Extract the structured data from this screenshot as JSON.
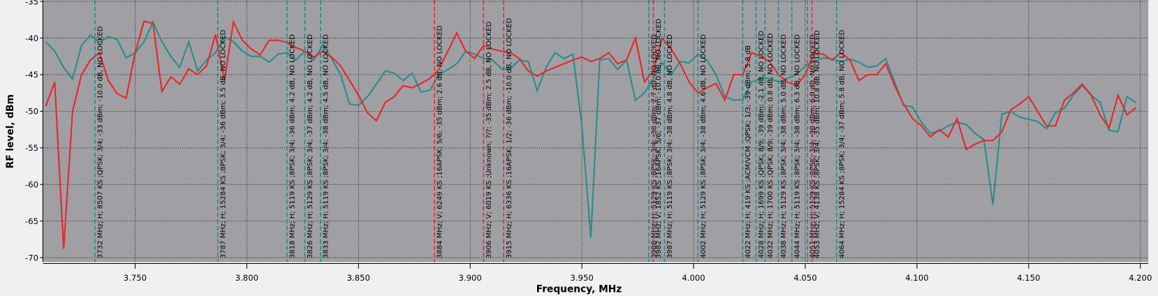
{
  "chart_data": {
    "type": "line",
    "x_label": "Frequency, MHz",
    "y_label": "RF level, dBm",
    "xlim": [
      3.7087,
      4.2036
    ],
    "ylim": [
      -70.6,
      -34.8
    ],
    "xticks": [
      {
        "value": 3.75,
        "label": "3.750"
      },
      {
        "value": 3.8,
        "label": "3.800"
      },
      {
        "value": 3.85,
        "label": "3.850"
      },
      {
        "value": 3.9,
        "label": "3.900"
      },
      {
        "value": 3.95,
        "label": "3.950"
      },
      {
        "value": 4.0,
        "label": "4.000"
      },
      {
        "value": 4.05,
        "label": "4.050"
      },
      {
        "value": 4.1,
        "label": "4.100"
      },
      {
        "value": 4.15,
        "label": "4.150"
      },
      {
        "value": 4.2,
        "label": "4.200"
      }
    ],
    "yticks": [
      -35,
      -40,
      -45,
      -50,
      -55,
      -60,
      -65,
      -70
    ],
    "grid": true,
    "x": [
      3.71,
      3.714,
      3.718,
      3.722,
      3.726,
      3.73,
      3.734,
      3.738,
      3.742,
      3.746,
      3.75,
      3.754,
      3.758,
      3.762,
      3.766,
      3.77,
      3.774,
      3.778,
      3.782,
      3.786,
      3.79,
      3.794,
      3.798,
      3.802,
      3.806,
      3.81,
      3.814,
      3.818,
      3.822,
      3.826,
      3.83,
      3.834,
      3.838,
      3.842,
      3.846,
      3.85,
      3.854,
      3.858,
      3.862,
      3.866,
      3.87,
      3.874,
      3.878,
      3.882,
      3.886,
      3.89,
      3.894,
      3.898,
      3.902,
      3.906,
      3.91,
      3.914,
      3.918,
      3.922,
      3.926,
      3.93,
      3.934,
      3.938,
      3.942,
      3.946,
      3.95,
      3.954,
      3.958,
      3.962,
      3.966,
      3.97,
      3.974,
      3.978,
      3.982,
      3.986,
      3.99,
      3.994,
      3.998,
      4.002,
      4.006,
      4.01,
      4.014,
      4.018,
      4.022,
      4.026,
      4.03,
      4.034,
      4.038,
      4.042,
      4.046,
      4.05,
      4.054,
      4.058,
      4.062,
      4.066,
      4.07,
      4.074,
      4.078,
      4.082,
      4.086,
      4.09,
      4.094,
      4.098,
      4.102,
      4.106,
      4.11,
      4.114,
      4.118,
      4.122,
      4.126,
      4.13,
      4.134,
      4.138,
      4.142,
      4.146,
      4.15,
      4.154,
      4.158,
      4.162,
      4.166,
      4.17,
      4.174,
      4.178,
      4.182,
      4.186,
      4.19,
      4.194,
      4.198
    ],
    "series": [
      {
        "color": "#2a8c8c",
        "values": [
          -40.5,
          -41.8,
          -44,
          -45.6,
          -41,
          -39.6,
          -40.6,
          -39.8,
          -40.2,
          -42.7,
          -42,
          -40.5,
          -37.8,
          -40.5,
          -42.5,
          -44,
          -40.5,
          -44.5,
          -43,
          -42,
          -39.8,
          -40.5,
          -41.8,
          -42.5,
          -42.5,
          -43.3,
          -42.2,
          -42,
          -43,
          -41.8,
          -43,
          -41,
          -42.8,
          -45,
          -49,
          -49.2,
          -48,
          -46.3,
          -44.5,
          -44.8,
          -45.8,
          -44.8,
          -47.4,
          -47.1,
          -45,
          -44.3,
          -43.5,
          -41.8,
          -42.2,
          -42.8,
          -43,
          -44.2,
          -44.2,
          -43,
          -43.2,
          -47.2,
          -44,
          -42,
          -42.8,
          -42.2,
          -52,
          -67.3,
          -43,
          -42.8,
          -44.3,
          -43,
          -48.5,
          -47.5,
          -45.5,
          -43.4,
          -45,
          -43.2,
          -43.4,
          -42.2,
          -43,
          -45,
          -48,
          -48.5,
          -48.4,
          -46,
          -45.5,
          -45.5,
          -46,
          -45.5,
          -45,
          -43.8,
          -43.2,
          -42.7,
          -42.9,
          -43.2,
          -42.9,
          -43.3,
          -44,
          -43.8,
          -42.8,
          -46,
          -49.2,
          -49.4,
          -51.5,
          -53,
          -52.7,
          -52,
          -51.5,
          -51.8,
          -53,
          -53.9,
          -62.8,
          -50.4,
          -50,
          -50.8,
          -51.1,
          -51.4,
          -52.4,
          -50.2,
          -49.6,
          -47.8,
          -46.5,
          -47.8,
          -48.8,
          -52.6,
          -52.8,
          -48,
          -48.8
        ]
      },
      {
        "color": "#e8262a",
        "values": [
          -49.3,
          -46,
          -68.8,
          -50,
          -45,
          -43,
          -42,
          -45.8,
          -47.6,
          -48.2,
          -42,
          -37.7,
          -38,
          -47.3,
          -45.3,
          -46.3,
          -44.2,
          -45,
          -43.8,
          -39.5,
          -45.8,
          -37.8,
          -40.3,
          -41.5,
          -42.3,
          -40.3,
          -40.3,
          -40.6,
          -41.3,
          -41.8,
          -42.6,
          -41.8,
          -42.6,
          -43.8,
          -45.8,
          -47.8,
          -50.2,
          -51.3,
          -48.8,
          -48,
          -46.5,
          -46.8,
          -46.2,
          -45.5,
          -44.3,
          -41.8,
          -39.3,
          -41.8,
          -42.8,
          -41,
          -41.5,
          -41.8,
          -42,
          -42.8,
          -44.5,
          -45.2,
          -44.5,
          -44,
          -43.5,
          -43,
          -42.6,
          -43.2,
          -42.8,
          -42,
          -43.5,
          -43,
          -40,
          -46,
          -44.5,
          -40,
          -41.5,
          -43.5,
          -46,
          -47.5,
          -46.8,
          -46.2,
          -48.5,
          -45,
          -45,
          -42,
          -42.5,
          -43.2,
          -45,
          -46,
          -46.5,
          -45,
          -42,
          -42.2,
          -43,
          -42,
          -43,
          -45.8,
          -45,
          -45,
          -43.5,
          -46.5,
          -49,
          -51,
          -52,
          -53.5,
          -52.5,
          -53.5,
          -51,
          -55.2,
          -54.5,
          -54,
          -54,
          -52.8,
          -49.8,
          -49,
          -48,
          -50,
          -52,
          -52,
          -48.5,
          -47.5,
          -46.3,
          -47.8,
          -50.5,
          -52.3,
          -47.8,
          -50.5,
          -49.5
        ]
      }
    ],
    "markers": [
      {
        "x": 3.732,
        "color": "#1f8a8a",
        "label": "3732 MHz; H; 8507 KS ;QPSK; 3/4; -33 dBm; -10.0 dB, NO LOCKED"
      },
      {
        "x": 3.787,
        "color": "#1f8a8a",
        "label": "3787 MHz; H; 15284 KS ;8PSK; 3/4; -36 dBm; 3.5 dB, NO LOCKED"
      },
      {
        "x": 3.818,
        "color": "#1f8a8a",
        "label": "3818 MHz; H; 5119 KS ;8PSK; 3/4; -36 dBm; 4.2 dB, NO LOCKED"
      },
      {
        "x": 3.826,
        "color": "#1f8a8a",
        "label": "3826 MHz; H; 5129 KS ;8PSK; 3/4; -37 dBm; 4.2 dB, NO LOCKED"
      },
      {
        "x": 3.833,
        "color": "#1f8a8a",
        "label": "3833 MHz; H; 5119 KS ;8PSK; 3/4; -38 dBm; 4.5 dB, NO LOCKED"
      },
      {
        "x": 3.884,
        "color": "#e8262a",
        "label": "3884 MHz; V; 6249 KS ;16APSK; 5/6; -35 dBm; 2.6 dB, NO LOCKED"
      },
      {
        "x": 3.906,
        "color": "#e8262a",
        "label": "3906 MHz; V; 6019 KS ;Unknown; ?/?; -35 dBm; 2.5 dB, NO LOCKED"
      },
      {
        "x": 3.915,
        "color": "#e8262a",
        "label": "3915 MHz; H; 6336 KS ;16APSK; 1/2; -36 dBm; -10.0 dB, NO LOCKED"
      },
      {
        "x": 3.98,
        "color": "#1f8a8a",
        "label": "3980 MHz; H; 5129 KS ;8PSK; 3/4; -38 dBm; 2.7 dB, NO LOCKED"
      },
      {
        "x": 3.982,
        "color": "#e8262a",
        "label": "3982 MHz; V; 1852 KS ;16APSK; 5/6; -37 dBm; -10.0 dB, NO LOCKED"
      },
      {
        "x": 3.987,
        "color": "#1f8a8a",
        "label": "3987 MHz; H; 5119 KS ;8PSK; 3/4; -38 dBm; 4.8 dB, NO LOCKED"
      },
      {
        "x": 4.002,
        "color": "#1f8a8a",
        "label": "4002 MHz; H; 5129 KS ;8PSK; 3/4; -38 dBm; 4.6 dB, NO LOCKED"
      },
      {
        "x": 4.022,
        "color": "#1f8a8a",
        "label": "4022 MHz; H; 419 KS ;ACM/VCM ;QPSK; 1/3; -39 dBm; 5.8 dB"
      },
      {
        "x": 4.028,
        "color": "#1f8a8a",
        "label": "4028 MHz; H; 1699 KS ;QPSK; 8/9; -39 dBm; -2.1 dB, NO LOCKED"
      },
      {
        "x": 4.032,
        "color": "#1f8a8a",
        "label": "4032 MHz; H; 1700 KS ;QPSK; 8/9; -39 dBm; 0.8 dB, NO LOCKED"
      },
      {
        "x": 4.038,
        "color": "#1f8a8a",
        "label": "4038 MHz; H; 5129 KS ;8PSK; 3/4; -38 dBm; 5.0 dB, NO LOCKED"
      },
      {
        "x": 4.044,
        "color": "#1f8a8a",
        "label": "4044 MHz; H; 5119 KS ;8PSK; 3/4; -38 dBm; 6.3 dB, NO LOCKED"
      },
      {
        "x": 4.051,
        "color": "#1f8a8a",
        "label": "4051 MHz; H; 5129 KS ;8PSK; 3/4; -38 dBm; 6.0 dB, NO LOCKED"
      },
      {
        "x": 4.053,
        "color": "#e8262a",
        "label": "4053 MHz; V; 4138 KS ;8PSK; 3/4; -35 dBm; 10.8 dB, NO LOCKED"
      },
      {
        "x": 4.064,
        "color": "#1f8a8a",
        "label": "4064 MHz; H; 15284 KS ;8PSK; 3/4; -37 dBm; 5.8 dB, NO LOCKED"
      }
    ]
  }
}
